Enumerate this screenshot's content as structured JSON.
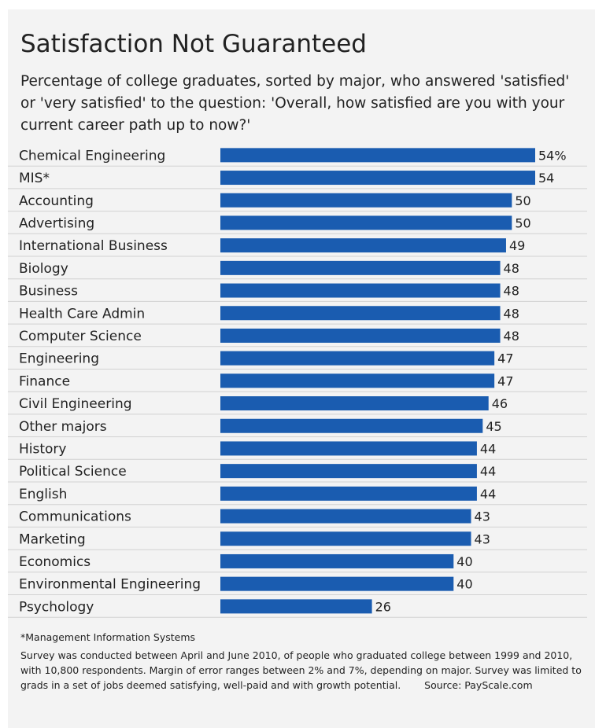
{
  "chart_data": {
    "type": "bar",
    "orientation": "horizontal",
    "title": "Satisfaction Not Guaranteed",
    "subtitle": "Percentage of college graduates, sorted by major, who answered 'satisfied' or 'very satisfied' to the question: 'Overall, how satisfied are you with your current career path up to now?'",
    "categories": [
      "Chemical Engineering",
      "MIS*",
      "Accounting",
      "Advertising",
      "International Business",
      "Biology",
      "Business",
      "Health Care Admin",
      "Computer Science",
      "Engineering",
      "Finance",
      "Civil Engineering",
      "Other majors",
      "History",
      "Political Science",
      "English",
      "Communications",
      "Marketing",
      "Economics",
      "Environmental Engineering",
      "Psychology"
    ],
    "values": [
      54,
      54,
      50,
      50,
      49,
      48,
      48,
      48,
      48,
      47,
      47,
      46,
      45,
      44,
      44,
      44,
      43,
      43,
      40,
      40,
      26
    ],
    "value_labels": [
      "54%",
      "54",
      "50",
      "50",
      "49",
      "48",
      "48",
      "48",
      "48",
      "47",
      "47",
      "46",
      "45",
      "44",
      "44",
      "44",
      "43",
      "43",
      "40",
      "40",
      "26"
    ],
    "xlim": [
      0,
      54
    ],
    "grid": false,
    "colors": {
      "bar": "#1a5cb0",
      "background": "#f3f3f3",
      "text": "#222222",
      "row_divider": "#d2d2d2"
    }
  },
  "footnote": "*Management Information Systems",
  "notes": {
    "text": "Survey was conducted between April and June 2010, of people who graduated college between 1999 and 2010, with 10,800 respondents. Margin of error ranges between 2% and 7%, depending on major. Survey was limited to grads in a set of jobs deemed satisfying, well-paid and with growth potential.",
    "source": "Source: PayScale.com"
  }
}
